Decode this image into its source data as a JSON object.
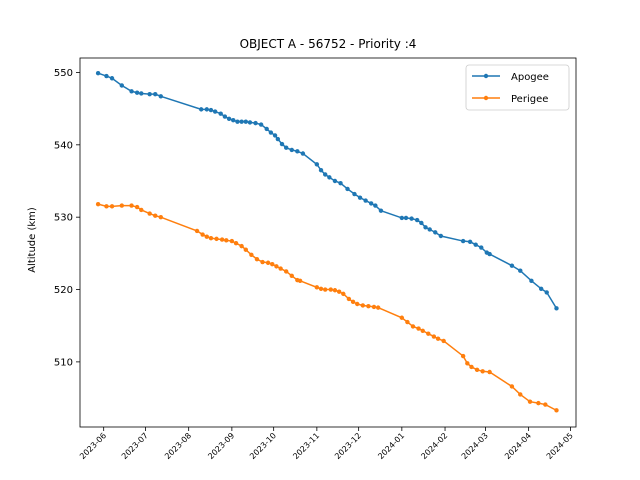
{
  "chart_data": {
    "type": "line",
    "title": "OBJECT A - 56752 - Priority :4",
    "xlabel": "",
    "ylabel": "Altitude (km)",
    "xlim": [
      "2023-05-15",
      "2024-05-05"
    ],
    "ylim": [
      501,
      552
    ],
    "x_ticks": [
      "2023-06",
      "2023-07",
      "2023-08",
      "2023-09",
      "2023-10",
      "2023-11",
      "2023-12",
      "2024-01",
      "2024-02",
      "2024-03",
      "2024-04",
      "2024-05"
    ],
    "y_ticks": [
      510,
      520,
      530,
      540,
      550
    ],
    "grid": false,
    "legend_position": "upper right",
    "colors": {
      "apogee": "#1f77b4",
      "perigee": "#ff7f0e"
    },
    "series": [
      {
        "name": "Apogee",
        "points": [
          [
            "2023-05-28",
            549.9
          ],
          [
            "2023-06-03",
            549.5
          ],
          [
            "2023-06-07",
            549.2
          ],
          [
            "2023-06-14",
            548.2
          ],
          [
            "2023-06-21",
            547.4
          ],
          [
            "2023-06-25",
            547.2
          ],
          [
            "2023-06-28",
            547.1
          ],
          [
            "2023-07-04",
            547.0
          ],
          [
            "2023-07-08",
            547.0
          ],
          [
            "2023-07-12",
            546.7
          ],
          [
            "2023-08-10",
            544.9
          ],
          [
            "2023-08-14",
            544.9
          ],
          [
            "2023-08-17",
            544.8
          ],
          [
            "2023-08-20",
            544.6
          ],
          [
            "2023-08-24",
            544.3
          ],
          [
            "2023-08-27",
            543.9
          ],
          [
            "2023-08-30",
            543.6
          ],
          [
            "2023-09-02",
            543.4
          ],
          [
            "2023-09-05",
            543.2
          ],
          [
            "2023-09-08",
            543.2
          ],
          [
            "2023-09-11",
            543.2
          ],
          [
            "2023-09-14",
            543.1
          ],
          [
            "2023-09-18",
            543.0
          ],
          [
            "2023-09-22",
            542.8
          ],
          [
            "2023-09-26",
            542.2
          ],
          [
            "2023-09-29",
            541.7
          ],
          [
            "2023-10-02",
            541.3
          ],
          [
            "2023-10-04",
            540.8
          ],
          [
            "2023-10-07",
            540.1
          ],
          [
            "2023-10-10",
            539.6
          ],
          [
            "2023-10-14",
            539.3
          ],
          [
            "2023-10-18",
            539.1
          ],
          [
            "2023-10-22",
            538.8
          ],
          [
            "2023-11-01",
            537.3
          ],
          [
            "2023-11-04",
            536.5
          ],
          [
            "2023-11-07",
            535.9
          ],
          [
            "2023-11-10",
            535.5
          ],
          [
            "2023-11-14",
            535.0
          ],
          [
            "2023-11-18",
            534.7
          ],
          [
            "2023-11-23",
            533.9
          ],
          [
            "2023-11-28",
            533.2
          ],
          [
            "2023-12-02",
            532.7
          ],
          [
            "2023-12-06",
            532.3
          ],
          [
            "2023-12-10",
            531.9
          ],
          [
            "2023-12-13",
            531.6
          ],
          [
            "2023-12-17",
            530.9
          ],
          [
            "2024-01-01",
            529.9
          ],
          [
            "2024-01-04",
            529.9
          ],
          [
            "2024-01-08",
            529.8
          ],
          [
            "2024-01-12",
            529.6
          ],
          [
            "2024-01-15",
            529.2
          ],
          [
            "2024-01-18",
            528.6
          ],
          [
            "2024-01-21",
            528.3
          ],
          [
            "2024-01-25",
            527.9
          ],
          [
            "2024-01-29",
            527.4
          ],
          [
            "2024-02-14",
            526.7
          ],
          [
            "2024-02-19",
            526.6
          ],
          [
            "2024-02-23",
            526.2
          ],
          [
            "2024-02-27",
            525.8
          ],
          [
            "2024-03-02",
            525.1
          ],
          [
            "2024-03-04",
            524.9
          ],
          [
            "2024-03-20",
            523.3
          ],
          [
            "2024-03-26",
            522.6
          ],
          [
            "2024-04-03",
            521.2
          ],
          [
            "2024-04-10",
            520.1
          ],
          [
            "2024-04-14",
            519.6
          ],
          [
            "2024-04-21",
            517.4
          ]
        ]
      },
      {
        "name": "Perigee",
        "points": [
          [
            "2023-05-28",
            531.8
          ],
          [
            "2023-06-03",
            531.5
          ],
          [
            "2023-06-07",
            531.5
          ],
          [
            "2023-06-14",
            531.6
          ],
          [
            "2023-06-21",
            531.6
          ],
          [
            "2023-06-25",
            531.4
          ],
          [
            "2023-06-28",
            531.0
          ],
          [
            "2023-07-04",
            530.5
          ],
          [
            "2023-07-08",
            530.2
          ],
          [
            "2023-07-12",
            530.0
          ],
          [
            "2023-08-07",
            528.1
          ],
          [
            "2023-08-11",
            527.6
          ],
          [
            "2023-08-14",
            527.3
          ],
          [
            "2023-08-17",
            527.1
          ],
          [
            "2023-08-21",
            527.0
          ],
          [
            "2023-08-25",
            526.9
          ],
          [
            "2023-08-28",
            526.8
          ],
          [
            "2023-09-01",
            526.7
          ],
          [
            "2023-09-04",
            526.4
          ],
          [
            "2023-09-08",
            526.0
          ],
          [
            "2023-09-11",
            525.5
          ],
          [
            "2023-09-15",
            524.8
          ],
          [
            "2023-09-19",
            524.2
          ],
          [
            "2023-09-23",
            523.8
          ],
          [
            "2023-09-27",
            523.7
          ],
          [
            "2023-09-30",
            523.5
          ],
          [
            "2023-10-03",
            523.2
          ],
          [
            "2023-10-06",
            522.9
          ],
          [
            "2023-10-10",
            522.5
          ],
          [
            "2023-10-14",
            521.9
          ],
          [
            "2023-10-18",
            521.3
          ],
          [
            "2023-10-20",
            521.2
          ],
          [
            "2023-11-01",
            520.3
          ],
          [
            "2023-11-04",
            520.1
          ],
          [
            "2023-11-07",
            520.0
          ],
          [
            "2023-11-11",
            520.0
          ],
          [
            "2023-11-14",
            519.9
          ],
          [
            "2023-11-17",
            519.7
          ],
          [
            "2023-11-20",
            519.4
          ],
          [
            "2023-11-24",
            518.7
          ],
          [
            "2023-11-27",
            518.3
          ],
          [
            "2023-11-30",
            518.0
          ],
          [
            "2023-12-04",
            517.8
          ],
          [
            "2023-12-08",
            517.7
          ],
          [
            "2023-12-12",
            517.6
          ],
          [
            "2023-12-15",
            517.5
          ],
          [
            "2024-01-01",
            516.1
          ],
          [
            "2024-01-05",
            515.5
          ],
          [
            "2024-01-09",
            514.9
          ],
          [
            "2024-01-13",
            514.6
          ],
          [
            "2024-01-16",
            514.3
          ],
          [
            "2024-01-20",
            513.9
          ],
          [
            "2024-01-24",
            513.5
          ],
          [
            "2024-01-27",
            513.2
          ],
          [
            "2024-01-31",
            512.9
          ],
          [
            "2024-02-14",
            510.8
          ],
          [
            "2024-02-17",
            509.8
          ],
          [
            "2024-02-20",
            509.3
          ],
          [
            "2024-02-24",
            508.9
          ],
          [
            "2024-02-28",
            508.7
          ],
          [
            "2024-03-04",
            508.6
          ],
          [
            "2024-03-20",
            506.6
          ],
          [
            "2024-03-26",
            505.5
          ],
          [
            "2024-04-02",
            504.5
          ],
          [
            "2024-04-08",
            504.3
          ],
          [
            "2024-04-13",
            504.1
          ],
          [
            "2024-04-21",
            503.3
          ]
        ]
      }
    ]
  }
}
